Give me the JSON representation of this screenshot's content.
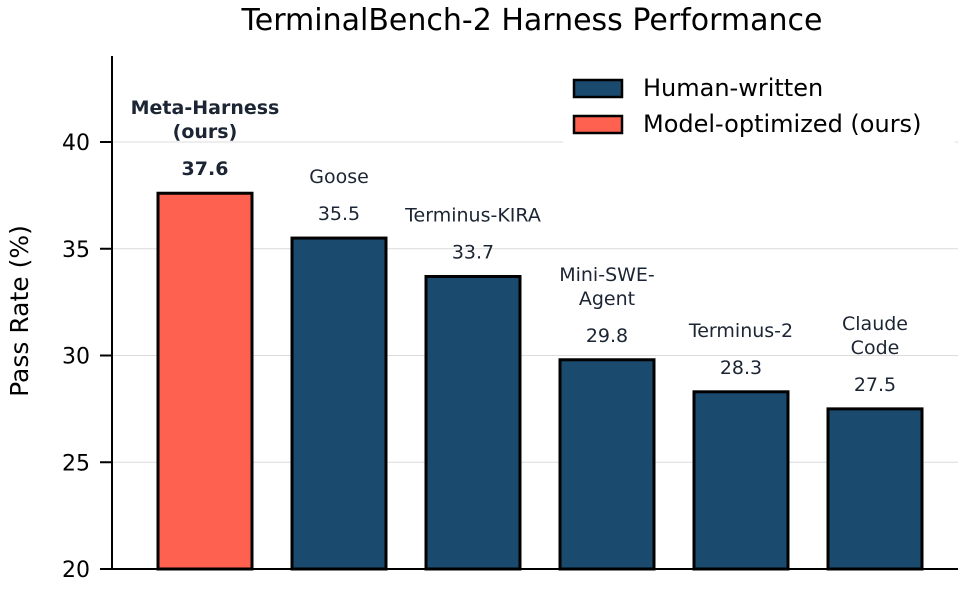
{
  "chart_data": {
    "type": "bar",
    "title": "TerminalBench-2 Harness Performance",
    "ylabel": "Pass Rate (%)",
    "xlabel": "",
    "ylim": [
      20,
      44
    ],
    "yticks": [
      "20",
      "25",
      "30",
      "35",
      "40"
    ],
    "grid": true,
    "legend_position": "top-right",
    "legend": [
      {
        "label": "Human-written",
        "color": "#1a4b6e"
      },
      {
        "label": "Model-optimized (ours)",
        "color": "#ff6150"
      }
    ],
    "bars": [
      {
        "name_lines": [
          "Meta-Harness",
          "(ours)"
        ],
        "value": 37.6,
        "value_label": "37.6",
        "group": "Model-optimized (ours)",
        "color": "#ff6150",
        "bold": true
      },
      {
        "name_lines": [
          "Goose"
        ],
        "value": 35.5,
        "value_label": "35.5",
        "group": "Human-written",
        "color": "#1a4b6e",
        "bold": false
      },
      {
        "name_lines": [
          "Terminus-KIRA"
        ],
        "value": 33.7,
        "value_label": "33.7",
        "group": "Human-written",
        "color": "#1a4b6e",
        "bold": false
      },
      {
        "name_lines": [
          "Mini-SWE-",
          "Agent"
        ],
        "value": 29.8,
        "value_label": "29.8",
        "group": "Human-written",
        "color": "#1a4b6e",
        "bold": false
      },
      {
        "name_lines": [
          "Terminus-2"
        ],
        "value": 28.3,
        "value_label": "28.3",
        "group": "Human-written",
        "color": "#1a4b6e",
        "bold": false
      },
      {
        "name_lines": [
          "Claude",
          "Code"
        ],
        "value": 27.5,
        "value_label": "27.5",
        "group": "Human-written",
        "color": "#1a4b6e",
        "bold": false
      }
    ]
  }
}
